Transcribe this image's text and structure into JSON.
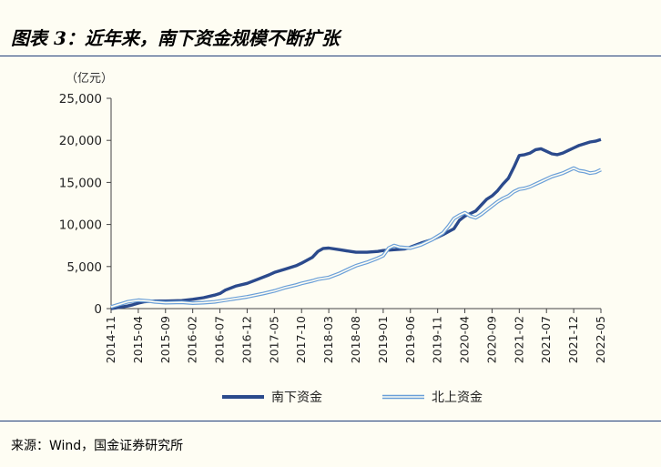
{
  "header": {
    "title": "图表 3：近年来，南下资金规模不断扩张"
  },
  "footer": {
    "source": "来源：Wind，国金证券研究所"
  },
  "chart_data": {
    "type": "line",
    "unit_label": "（亿元）",
    "ylim": [
      0,
      25000
    ],
    "y_ticks": [
      "0",
      "5,000",
      "10,000",
      "15,000",
      "20,000",
      "25,000"
    ],
    "x_ticks": [
      "2014-11",
      "2015-04",
      "2015-09",
      "2016-02",
      "2016-07",
      "2016-12",
      "2017-05",
      "2017-10",
      "2018-03",
      "2018-08",
      "2019-01",
      "2019-06",
      "2019-11",
      "2020-04",
      "2020-09",
      "2021-02",
      "2021-07",
      "2021-12",
      "2022-05"
    ],
    "x_range": [
      "2014-11",
      "2022-05"
    ],
    "grid": false,
    "legend_position": "bottom",
    "series": [
      {
        "name": "南下资金",
        "color": "#2b4a8c",
        "style": "solid",
        "points": [
          [
            "2014-11",
            0
          ],
          [
            "2014-12",
            100
          ],
          [
            "2015-01",
            200
          ],
          [
            "2015-02",
            300
          ],
          [
            "2015-03",
            450
          ],
          [
            "2015-04",
            650
          ],
          [
            "2015-05",
            800
          ],
          [
            "2015-06",
            850
          ],
          [
            "2015-07",
            900
          ],
          [
            "2015-09",
            900
          ],
          [
            "2015-12",
            950
          ],
          [
            "2016-02",
            1100
          ],
          [
            "2016-04",
            1300
          ],
          [
            "2016-06",
            1600
          ],
          [
            "2016-07",
            1800
          ],
          [
            "2016-08",
            2200
          ],
          [
            "2016-10",
            2700
          ],
          [
            "2016-12",
            3000
          ],
          [
            "2017-02",
            3500
          ],
          [
            "2017-04",
            4000
          ],
          [
            "2017-05",
            4300
          ],
          [
            "2017-07",
            4700
          ],
          [
            "2017-09",
            5100
          ],
          [
            "2017-10",
            5400
          ],
          [
            "2017-12",
            6100
          ],
          [
            "2018-01",
            6800
          ],
          [
            "2018-02",
            7150
          ],
          [
            "2018-03",
            7200
          ],
          [
            "2018-05",
            7000
          ],
          [
            "2018-07",
            6800
          ],
          [
            "2018-08",
            6700
          ],
          [
            "2018-10",
            6700
          ],
          [
            "2018-12",
            6800
          ],
          [
            "2019-01",
            6900
          ],
          [
            "2019-03",
            7000
          ],
          [
            "2019-05",
            7100
          ],
          [
            "2019-06",
            7300
          ],
          [
            "2019-08",
            7800
          ],
          [
            "2019-10",
            8200
          ],
          [
            "2019-11",
            8500
          ],
          [
            "2019-12",
            8800
          ],
          [
            "2020-02",
            9500
          ],
          [
            "2020-03",
            10500
          ],
          [
            "2020-04",
            11000
          ],
          [
            "2020-05",
            11300
          ],
          [
            "2020-06",
            11600
          ],
          [
            "2020-07",
            12300
          ],
          [
            "2020-08",
            13000
          ],
          [
            "2020-09",
            13400
          ],
          [
            "2020-10",
            14000
          ],
          [
            "2020-11",
            14800
          ],
          [
            "2020-12",
            15500
          ],
          [
            "2021-01",
            16800
          ],
          [
            "2021-02",
            18200
          ],
          [
            "2021-03",
            18300
          ],
          [
            "2021-04",
            18500
          ],
          [
            "2021-05",
            18900
          ],
          [
            "2021-06",
            19000
          ],
          [
            "2021-07",
            18700
          ],
          [
            "2021-08",
            18400
          ],
          [
            "2021-09",
            18300
          ],
          [
            "2021-10",
            18500
          ],
          [
            "2021-11",
            18800
          ],
          [
            "2021-12",
            19100
          ],
          [
            "2022-01",
            19400
          ],
          [
            "2022-02",
            19600
          ],
          [
            "2022-03",
            19800
          ],
          [
            "2022-04",
            19900
          ],
          [
            "2022-05",
            20100
          ]
        ]
      },
      {
        "name": "北上资金",
        "color": "#6a9fd8",
        "style": "double",
        "points": [
          [
            "2014-11",
            200
          ],
          [
            "2014-12",
            400
          ],
          [
            "2015-01",
            600
          ],
          [
            "2015-02",
            800
          ],
          [
            "2015-03",
            900
          ],
          [
            "2015-04",
            1000
          ],
          [
            "2015-05",
            950
          ],
          [
            "2015-06",
            900
          ],
          [
            "2015-07",
            800
          ],
          [
            "2015-09",
            700
          ],
          [
            "2015-12",
            750
          ],
          [
            "2016-02",
            650
          ],
          [
            "2016-04",
            700
          ],
          [
            "2016-06",
            800
          ],
          [
            "2016-07",
            900
          ],
          [
            "2016-09",
            1100
          ],
          [
            "2016-12",
            1400
          ],
          [
            "2017-03",
            1800
          ],
          [
            "2017-05",
            2100
          ],
          [
            "2017-07",
            2500
          ],
          [
            "2017-09",
            2800
          ],
          [
            "2017-10",
            3000
          ],
          [
            "2017-12",
            3300
          ],
          [
            "2018-01",
            3500
          ],
          [
            "2018-03",
            3700
          ],
          [
            "2018-05",
            4200
          ],
          [
            "2018-07",
            4800
          ],
          [
            "2018-08",
            5100
          ],
          [
            "2018-10",
            5500
          ],
          [
            "2018-12",
            6000
          ],
          [
            "2019-01",
            6300
          ],
          [
            "2019-02",
            7200
          ],
          [
            "2019-03",
            7500
          ],
          [
            "2019-04",
            7300
          ],
          [
            "2019-06",
            7200
          ],
          [
            "2019-08",
            7600
          ],
          [
            "2019-10",
            8200
          ],
          [
            "2019-11",
            8600
          ],
          [
            "2019-12",
            9000
          ],
          [
            "2020-01",
            9800
          ],
          [
            "2020-02",
            10700
          ],
          [
            "2020-03",
            11100
          ],
          [
            "2020-04",
            11400
          ],
          [
            "2020-05",
            11000
          ],
          [
            "2020-06",
            10800
          ],
          [
            "2020-07",
            11200
          ],
          [
            "2020-08",
            11700
          ],
          [
            "2020-09",
            12200
          ],
          [
            "2020-10",
            12700
          ],
          [
            "2020-11",
            13100
          ],
          [
            "2020-12",
            13400
          ],
          [
            "2021-01",
            13900
          ],
          [
            "2021-02",
            14200
          ],
          [
            "2021-03",
            14300
          ],
          [
            "2021-04",
            14500
          ],
          [
            "2021-05",
            14800
          ],
          [
            "2021-06",
            15100
          ],
          [
            "2021-07",
            15400
          ],
          [
            "2021-08",
            15700
          ],
          [
            "2021-09",
            15900
          ],
          [
            "2021-10",
            16100
          ],
          [
            "2021-11",
            16400
          ],
          [
            "2021-12",
            16700
          ],
          [
            "2022-01",
            16400
          ],
          [
            "2022-02",
            16300
          ],
          [
            "2022-03",
            16100
          ],
          [
            "2022-04",
            16200
          ],
          [
            "2022-05",
            16500
          ]
        ]
      }
    ]
  }
}
